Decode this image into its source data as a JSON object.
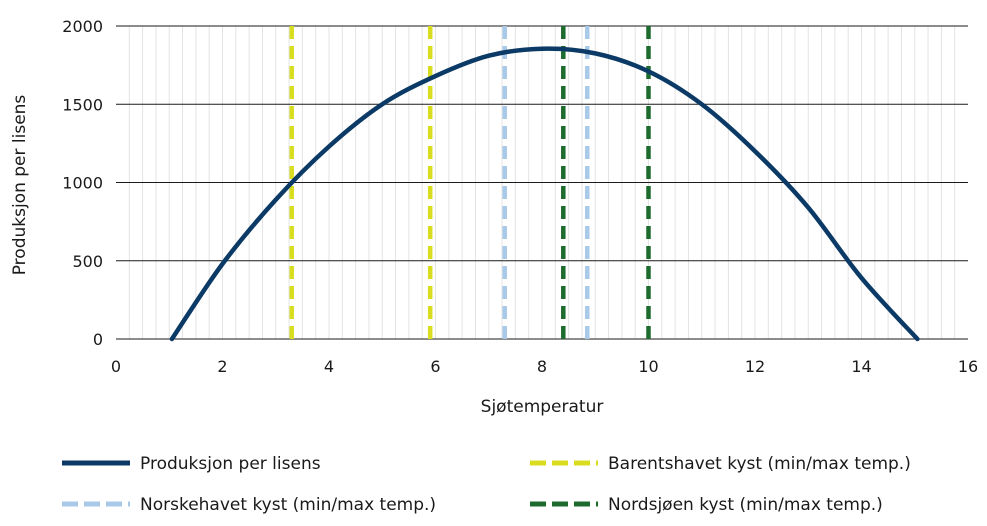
{
  "chart_data": {
    "type": "line",
    "title": "",
    "xlabel": "Sjøtemperatur",
    "ylabel": "Produksjon per lisens",
    "xlim": [
      0,
      16
    ],
    "ylim": [
      0,
      2000
    ],
    "xticks": [
      0,
      2,
      4,
      6,
      8,
      10,
      12,
      14,
      16
    ],
    "yticks": [
      0,
      500,
      1000,
      1500,
      2000
    ],
    "x_minor_step": 0.25,
    "grid": {
      "horizontal_major": true,
      "vertical_minor": true
    },
    "legend_position": "bottom",
    "series": [
      {
        "name": "Produksjon per lisens",
        "kind": "curve",
        "color": "#0c3a66",
        "style": "solid",
        "x": [
          1.05,
          2,
          3,
          4,
          5,
          6,
          7,
          8,
          9,
          10,
          11,
          12,
          13,
          14,
          15.05
        ],
        "y": [
          0,
          480,
          890,
          1230,
          1500,
          1680,
          1810,
          1855,
          1825,
          1710,
          1500,
          1200,
          840,
          390,
          0
        ]
      },
      {
        "name": "Barentshavet kyst (min/max temp.)",
        "kind": "vlines",
        "color": "#d9dd1f",
        "style": "dashed",
        "x": [
          3.3,
          5.9
        ]
      },
      {
        "name": "Norskehavet kyst (min/max temp.)",
        "kind": "vlines",
        "color": "#a9c9e8",
        "style": "dashed",
        "x": [
          7.3,
          8.85
        ]
      },
      {
        "name": "Nordsjøen kyst (min/max temp.)",
        "kind": "vlines",
        "color": "#1d6b2e",
        "style": "dashed",
        "x": [
          8.4,
          10.0
        ]
      }
    ]
  }
}
